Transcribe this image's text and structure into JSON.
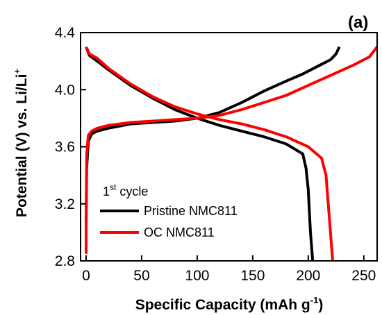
{
  "chart_data": {
    "type": "line",
    "panel_label": "(a)",
    "xlabel": "Specific Capacity (mAh g",
    "xlabel_sup": "-1",
    "xlabel_end": ")",
    "ylabel": "Potential (V) vs. Li/Li",
    "ylabel_sup": "+",
    "xlim": [
      -5,
      262
    ],
    "ylim": [
      2.8,
      4.4
    ],
    "xticks": [
      0,
      50,
      100,
      150,
      200,
      250
    ],
    "xtick_labels": [
      "0",
      "50",
      "100",
      "150",
      "200",
      "250"
    ],
    "yticks": [
      2.8,
      3.2,
      3.6,
      4.0,
      4.4
    ],
    "ytick_labels": [
      "2.8",
      "3.2",
      "3.6",
      "4.0",
      "4.4"
    ],
    "grid": false,
    "legend_placement": "bottom-left",
    "legend_title": "1",
    "legend_title_sup": "st",
    "legend_title_end": " cycle",
    "series": [
      {
        "name": "Pristine NMC811",
        "color": "#000000",
        "charge": {
          "x": [
            0,
            0,
            0.5,
            2,
            5,
            10,
            20,
            40,
            60,
            80,
            100,
            120,
            140,
            160,
            180,
            195,
            210,
            220,
            225,
            228
          ],
          "y": [
            2.95,
            3.05,
            3.45,
            3.64,
            3.69,
            3.71,
            3.73,
            3.76,
            3.77,
            3.78,
            3.8,
            3.84,
            3.91,
            3.99,
            4.06,
            4.11,
            4.17,
            4.21,
            4.25,
            4.3
          ]
        },
        "discharge": {
          "x": [
            0,
            3,
            10,
            20,
            40,
            60,
            80,
            100,
            120,
            140,
            160,
            180,
            195,
            198,
            200,
            201,
            202,
            203,
            204
          ],
          "y": [
            4.3,
            4.24,
            4.2,
            4.14,
            4.03,
            3.94,
            3.86,
            3.8,
            3.75,
            3.71,
            3.67,
            3.62,
            3.55,
            3.45,
            3.3,
            3.15,
            3.0,
            2.9,
            2.8
          ]
        }
      },
      {
        "name": "OC NMC811",
        "color": "#ff0000",
        "charge": {
          "x": [
            0,
            0,
            0.5,
            2,
            5,
            10,
            20,
            40,
            60,
            80,
            100,
            120,
            140,
            160,
            180,
            200,
            220,
            240,
            255,
            262
          ],
          "y": [
            2.85,
            3.05,
            3.55,
            3.68,
            3.71,
            3.73,
            3.75,
            3.77,
            3.78,
            3.79,
            3.8,
            3.82,
            3.86,
            3.91,
            3.96,
            4.03,
            4.1,
            4.17,
            4.23,
            4.3
          ]
        },
        "discharge": {
          "x": [
            0,
            3,
            10,
            20,
            40,
            60,
            80,
            100,
            120,
            140,
            160,
            180,
            200,
            212,
            216,
            218,
            220,
            221,
            222
          ],
          "y": [
            4.3,
            4.25,
            4.22,
            4.15,
            4.04,
            3.95,
            3.88,
            3.83,
            3.79,
            3.76,
            3.72,
            3.67,
            3.6,
            3.52,
            3.4,
            3.2,
            3.0,
            2.9,
            2.8
          ]
        }
      }
    ]
  }
}
